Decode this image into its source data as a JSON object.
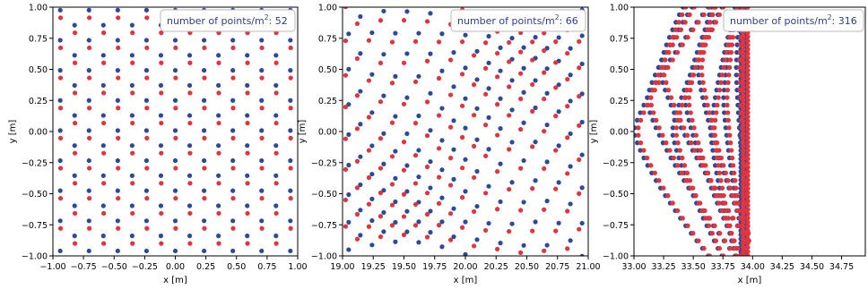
{
  "chart_data": [
    {
      "type": "scatter",
      "title": "",
      "xlabel": "x [m]",
      "ylabel": "y [m]",
      "xlim": [
        -1.0,
        1.0
      ],
      "ylim": [
        -1.0,
        1.0
      ],
      "xticks": [
        "−1.00",
        "−0.75",
        "−0.50",
        "−0.25",
        "0.00",
        "0.25",
        "0.50",
        "0.75",
        "1.00"
      ],
      "yticks": [
        "−1.00",
        "−0.75",
        "−0.50",
        "−0.25",
        "0.00",
        "0.25",
        "0.50",
        "0.75",
        "1.00"
      ],
      "annotation": {
        "prefix": "number of points/m",
        "sup": "2",
        "suffix": ": 52"
      },
      "series": [
        {
          "color": "#2b4a9a",
          "pattern": "hex-lattice",
          "spacing_x": 0.235,
          "spacing_y": 0.121,
          "x0": -0.94,
          "y0": -0.96
        },
        {
          "color": "#e3333c",
          "pattern": "hex-lattice",
          "spacing_x": 0.235,
          "spacing_y": 0.121,
          "x0": -0.82,
          "y0": -0.9
        }
      ]
    },
    {
      "type": "scatter",
      "title": "",
      "xlabel": "x [m]",
      "ylabel": "y [m]",
      "xlim": [
        19.0,
        21.0
      ],
      "ylim": [
        -1.0,
        1.0
      ],
      "xticks": [
        "19.00",
        "19.25",
        "19.50",
        "19.75",
        "20.00",
        "20.25",
        "20.50",
        "20.75",
        "21.00"
      ],
      "yticks": [
        "−1.00",
        "−0.75",
        "−0.50",
        "−0.25",
        "0.00",
        "0.25",
        "0.50",
        "0.75",
        "1.00"
      ],
      "annotation": {
        "prefix": "number of points/m",
        "sup": "2",
        "suffix": ": 66"
      },
      "series": [
        {
          "color": "#2b4a9a",
          "pattern": "curved-lattice",
          "center_x": 20.0,
          "spacing_x": 0.19,
          "spacing_y": 0.125,
          "x0": 19.05,
          "y0": -0.98
        },
        {
          "color": "#e3333c",
          "pattern": "curved-lattice",
          "center_x": 20.0,
          "spacing_x": 0.19,
          "spacing_y": 0.125,
          "x0": 19.12,
          "y0": -0.9
        }
      ]
    },
    {
      "type": "scatter",
      "title": "",
      "xlabel": "x [m]",
      "ylabel": "y [m]",
      "xlim": [
        33.0,
        34.95
      ],
      "ylim": [
        -1.0,
        1.0
      ],
      "xticks": [
        "33.00",
        "33.25",
        "33.50",
        "33.75",
        "34.00",
        "34.25",
        "34.50",
        "34.75"
      ],
      "yticks": [
        "−1.00",
        "−0.75",
        "−0.50",
        "−0.25",
        "0.00",
        "0.25",
        "0.50",
        "0.75",
        "1.00"
      ],
      "annotation": {
        "prefix": "number of points/m",
        "sup": "2",
        "suffix": ": 316"
      },
      "series": [
        {
          "color": "#2b4a9a",
          "pattern": "converging-arcs",
          "x_min": 33.0,
          "x_max": 33.97
        },
        {
          "color": "#e3333c",
          "pattern": "converging-arcs",
          "x_min": 33.0,
          "x_max": 33.97
        }
      ]
    }
  ]
}
